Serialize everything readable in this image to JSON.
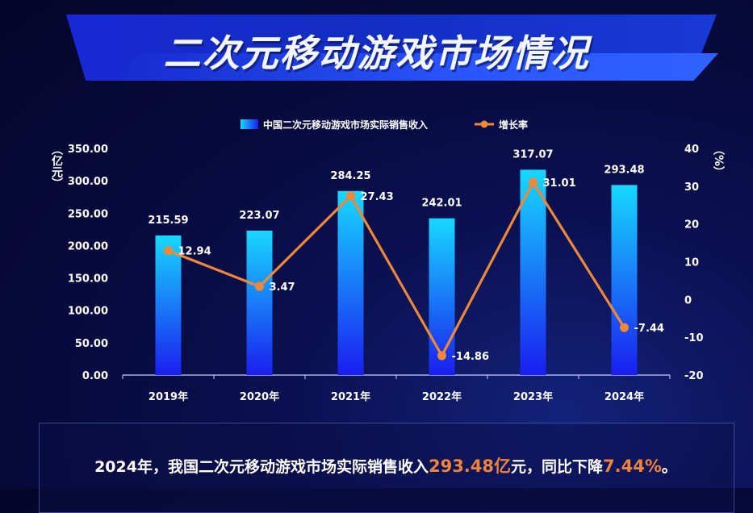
{
  "title": "二次元移动游戏市场情况",
  "note": {
    "prefix": "2024年，我国二次元移动游戏市场实际销售收入",
    "value": "293.48亿",
    "middle": "元，同比下降",
    "pct": "7.44%",
    "suffix": "。"
  },
  "colors": {
    "bar_top": "#18d8ff",
    "bar_bottom": "#1a1ef0",
    "line": "#f08838",
    "text": "#ffffff"
  },
  "chart_data": {
    "type": "bar",
    "categories": [
      "2019年",
      "2020年",
      "2021年",
      "2022年",
      "2023年",
      "2024年"
    ],
    "series": [
      {
        "name": "中国二次元移动游戏市场实际销售收入",
        "type": "bar",
        "axis": "left",
        "values": [
          215.59,
          223.07,
          284.25,
          242.01,
          317.07,
          293.48
        ],
        "labels": [
          "215.59",
          "223.07",
          "284.25",
          "242.01",
          "317.07",
          "293.48"
        ]
      },
      {
        "name": "增长率",
        "type": "line",
        "axis": "right",
        "values": [
          12.94,
          3.47,
          27.43,
          -14.86,
          31.01,
          -7.44
        ],
        "labels": [
          "12.94",
          "3.47",
          "27.43",
          "-14.86",
          "31.01",
          "-7.44"
        ]
      }
    ],
    "ylabel": "（亿元）",
    "y2label": "（%）",
    "ylim": [
      0,
      350
    ],
    "y2lim": [
      -20,
      40
    ],
    "yticks": [
      "0.00",
      "50.00",
      "100.00",
      "150.00",
      "200.00",
      "250.00",
      "300.00",
      "350.00"
    ],
    "y2ticks": [
      "-20",
      "-10",
      "0",
      "10",
      "20",
      "30",
      "40"
    ],
    "legend": "top-center",
    "grid": false
  }
}
